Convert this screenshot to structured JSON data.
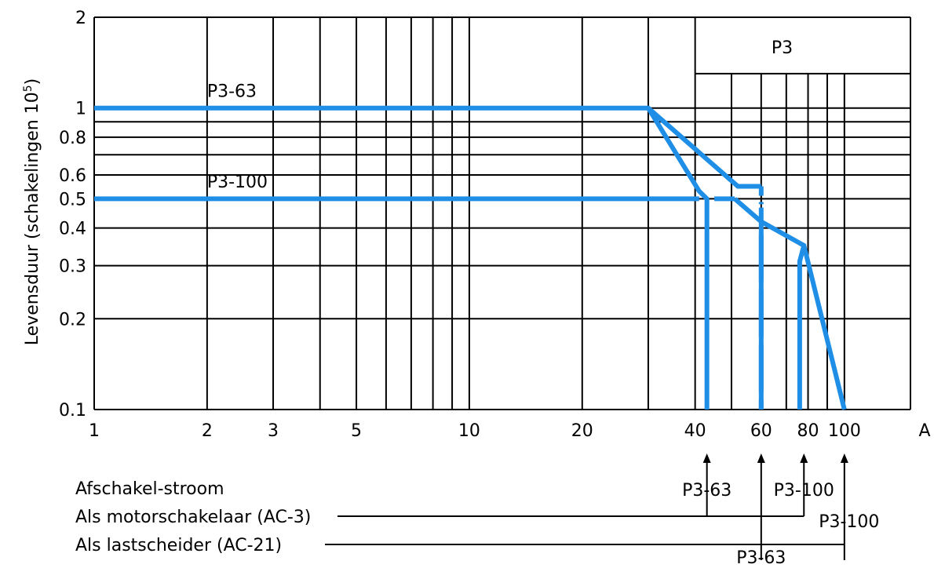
{
  "chart_data": {
    "type": "line",
    "ylabel": "Levensduur (schakelingen 10",
    "ylabel_sup": "5",
    "ylabel_close": ")",
    "xlabel": "A",
    "x_scale": "log",
    "y_scale": "log",
    "xlim": [
      1,
      150
    ],
    "ylim": [
      0.1,
      2
    ],
    "x_ticks": [
      {
        "value": 1,
        "label": "1"
      },
      {
        "value": 2,
        "label": "2"
      },
      {
        "value": 3,
        "label": "3"
      },
      {
        "value": 5,
        "label": "5"
      },
      {
        "value": 10,
        "label": "10"
      },
      {
        "value": 20,
        "label": "20"
      },
      {
        "value": 40,
        "label": "40"
      },
      {
        "value": 60,
        "label": "60"
      },
      {
        "value": 80,
        "label": "80"
      },
      {
        "value": 100,
        "label": "100"
      }
    ],
    "y_ticks": [
      {
        "value": 0.1,
        "label": "0.1"
      },
      {
        "value": 0.2,
        "label": "0.2"
      },
      {
        "value": 0.3,
        "label": "0.3"
      },
      {
        "value": 0.4,
        "label": "0.4"
      },
      {
        "value": 0.5,
        "label": "0.5"
      },
      {
        "value": 0.6,
        "label": "0.6"
      },
      {
        "value": 0.8,
        "label": "0.8"
      },
      {
        "value": 1,
        "label": "1"
      },
      {
        "value": 2,
        "label": "2"
      }
    ],
    "grid_x": [
      1,
      2,
      3,
      4,
      5,
      6,
      7,
      8,
      9,
      10,
      20,
      30,
      150
    ],
    "grid_x_lower": [
      40,
      50,
      60,
      70,
      80,
      90,
      100
    ],
    "grid_y": [
      0.1,
      0.2,
      0.3,
      0.4,
      0.5,
      0.6,
      0.7,
      0.8,
      0.9,
      1,
      2
    ],
    "region": {
      "label": "P3",
      "x_from": 40,
      "x_to": 150,
      "y_from": 1.3
    },
    "series": [
      {
        "name": "P3-63",
        "label_at": [
          2,
          1.09
        ],
        "points": [
          [
            1,
            1
          ],
          [
            30,
            1
          ],
          [
            52,
            0.55
          ],
          [
            60,
            0.55
          ]
        ],
        "dashed_tail": [
          [
            60,
            0.55
          ],
          [
            60,
            0.48
          ]
        ],
        "drop_x": 60
      },
      {
        "name": "P3-63",
        "points": [
          [
            30,
            1
          ],
          [
            41,
            0.53
          ],
          [
            43,
            0.5
          ],
          [
            43,
            0.1
          ]
        ]
      },
      {
        "name": "P3-100",
        "label_at": [
          2,
          0.545
        ],
        "points": [
          [
            1,
            0.5
          ],
          [
            41,
            0.5
          ]
        ],
        "dashed": [
          [
            45,
            0.5
          ],
          [
            51,
            0.5
          ]
        ],
        "tail": [
          [
            51,
            0.5
          ],
          [
            60,
            0.42
          ],
          [
            78,
            0.35
          ],
          [
            100,
            0.1
          ]
        ]
      },
      {
        "name": "P3-100",
        "points": [
          [
            78,
            0.35
          ],
          [
            76,
            0.31
          ],
          [
            76,
            0.1
          ]
        ],
        "dashed_drop": [
          [
            60,
            0.38
          ],
          [
            60,
            0.1
          ]
        ]
      }
    ],
    "line_color": "#1e8ee6",
    "grid_color": "#000000"
  },
  "bottom": {
    "title": "Afschakel-stroom",
    "row1": "Als motorschakelaar (AC-3)",
    "row2": "Als lastscheider (AC-21)",
    "markers": [
      {
        "label": "P3-63",
        "x": 43,
        "row": 1
      },
      {
        "label": "P3-100",
        "x": 78,
        "row": 1
      },
      {
        "label": "P3-100",
        "x": 100,
        "row": 2
      },
      {
        "label": "P3-63",
        "x": 60,
        "row": 2
      }
    ]
  }
}
